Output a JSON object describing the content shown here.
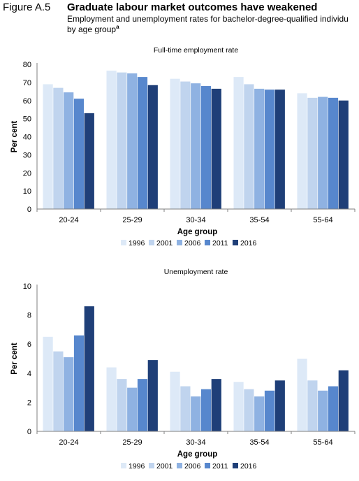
{
  "header": {
    "figure_label": "Figure A.5",
    "title": "Graduate labour market outcomes have weakened",
    "subtitle_line1": "Employment and unemployment rates for bachelor-degree-qualified individu",
    "subtitle_line2": "by age group",
    "subtitle_note": "a"
  },
  "colors": [
    "#dde9f7",
    "#c0d4ee",
    "#8fb2e2",
    "#5787cd",
    "#1f3f78"
  ],
  "chart_data": [
    {
      "type": "bar",
      "title": "Full-time employment rate",
      "xlabel": "Age group",
      "ylabel": "Per cent",
      "categories": [
        "20-24",
        "25-29",
        "30-34",
        "35-54",
        "55-64"
      ],
      "ylim": [
        0,
        80
      ],
      "yticks": [
        0,
        10,
        20,
        30,
        40,
        50,
        60,
        70,
        80
      ],
      "grid": false,
      "legend_position": "bottom",
      "series": [
        {
          "name": "1996",
          "values": [
            69,
            76.5,
            72,
            73,
            64
          ]
        },
        {
          "name": "2001",
          "values": [
            67,
            75.5,
            70.5,
            69,
            61.5
          ]
        },
        {
          "name": "2006",
          "values": [
            64.5,
            75,
            69.5,
            66.5,
            62
          ]
        },
        {
          "name": "2011",
          "values": [
            61,
            73,
            68,
            66,
            61.5
          ]
        },
        {
          "name": "2016",
          "values": [
            53,
            68.5,
            66.5,
            66,
            60
          ]
        }
      ]
    },
    {
      "type": "bar",
      "title": "Unemployment rate",
      "xlabel": "Age group",
      "ylabel": "Per cent",
      "categories": [
        "20-24",
        "25-29",
        "30-34",
        "35-54",
        "55-64"
      ],
      "ylim": [
        0,
        10
      ],
      "yticks": [
        0,
        2,
        4,
        6,
        8,
        10
      ],
      "grid": false,
      "legend_position": "bottom",
      "series": [
        {
          "name": "1996",
          "values": [
            6.5,
            4.4,
            4.1,
            3.4,
            5.0
          ]
        },
        {
          "name": "2001",
          "values": [
            5.5,
            3.6,
            3.1,
            2.9,
            3.5
          ]
        },
        {
          "name": "2006",
          "values": [
            5.1,
            3.0,
            2.4,
            2.4,
            2.8
          ]
        },
        {
          "name": "2011",
          "values": [
            6.6,
            3.6,
            2.9,
            2.8,
            3.1
          ]
        },
        {
          "name": "2016",
          "values": [
            8.6,
            4.9,
            3.6,
            3.5,
            4.2
          ]
        }
      ]
    }
  ]
}
